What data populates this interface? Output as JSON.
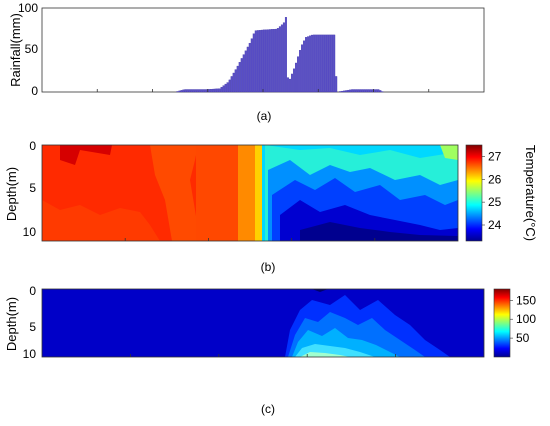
{
  "colors": {
    "bar": "#5a4fc7",
    "bar_stroke": "#3d33a8",
    "axis": "#333333",
    "jet": [
      "#00008f",
      "#0000ff",
      "#0080ff",
      "#00ffff",
      "#80ff80",
      "#ffff00",
      "#ff8000",
      "#ff0000",
      "#800000"
    ]
  },
  "chart_data": [
    {
      "panel": "(a)",
      "type": "bar",
      "ylabel": "Rainfall(mm)",
      "ylim": [
        0,
        100
      ],
      "yticks": [
        "0",
        "50",
        "100"
      ],
      "xlim": [
        0,
        1
      ],
      "x_tick_count": 8,
      "grid": false,
      "series_note_values": [
        [
          0.3,
          0.0
        ],
        [
          0.32,
          3.0
        ],
        [
          0.355,
          3.0
        ],
        [
          0.37,
          3.0
        ],
        [
          0.4,
          4.0
        ],
        [
          0.42,
          12.0
        ],
        [
          0.44,
          30.0
        ],
        [
          0.455,
          45.0
        ],
        [
          0.47,
          60.0
        ],
        [
          0.48,
          73.0
        ],
        [
          0.5,
          74.0
        ],
        [
          0.53,
          75.0
        ],
        [
          0.545,
          82.0
        ],
        [
          0.55,
          89.0
        ],
        [
          0.555,
          10.0
        ],
        [
          0.57,
          30.0
        ],
        [
          0.585,
          55.0
        ],
        [
          0.595,
          65.0
        ],
        [
          0.61,
          68.0
        ],
        [
          0.66,
          68.0
        ],
        [
          0.665,
          0.0
        ],
        [
          0.7,
          3.0
        ],
        [
          0.76,
          3.0
        ],
        [
          0.77,
          0.0
        ]
      ]
    },
    {
      "panel": "(b)",
      "type": "heatmap",
      "ylabel": "Depth(m)",
      "yticks": [
        "0",
        "5",
        "10"
      ],
      "ylim": [
        0,
        11
      ],
      "colorbar_label": "Temperature(°C)",
      "colorbar_ticks": [
        "24",
        "25",
        "26",
        "27"
      ],
      "clim": [
        23.3,
        27.5
      ],
      "description_values": {
        "warm_phase_end_fraction": 0.45,
        "warm_value": 26.9,
        "cool_surface_value": 25.0,
        "cool_bottom_value": 23.4
      }
    },
    {
      "panel": "(c)",
      "type": "heatmap",
      "ylabel": "Depth(m)",
      "yticks": [
        "0",
        "5",
        "10"
      ],
      "ylim": [
        0,
        11
      ],
      "colorbar_ticks": [
        "50",
        "100",
        "150"
      ],
      "clim": [
        0,
        180
      ],
      "description_values": {
        "low_phase_end_fraction": 0.45,
        "background_value": 5,
        "peak_value": 85
      }
    }
  ],
  "labels": {
    "panel_a": "(a)",
    "panel_b": "(b)",
    "panel_c": "(c)"
  }
}
